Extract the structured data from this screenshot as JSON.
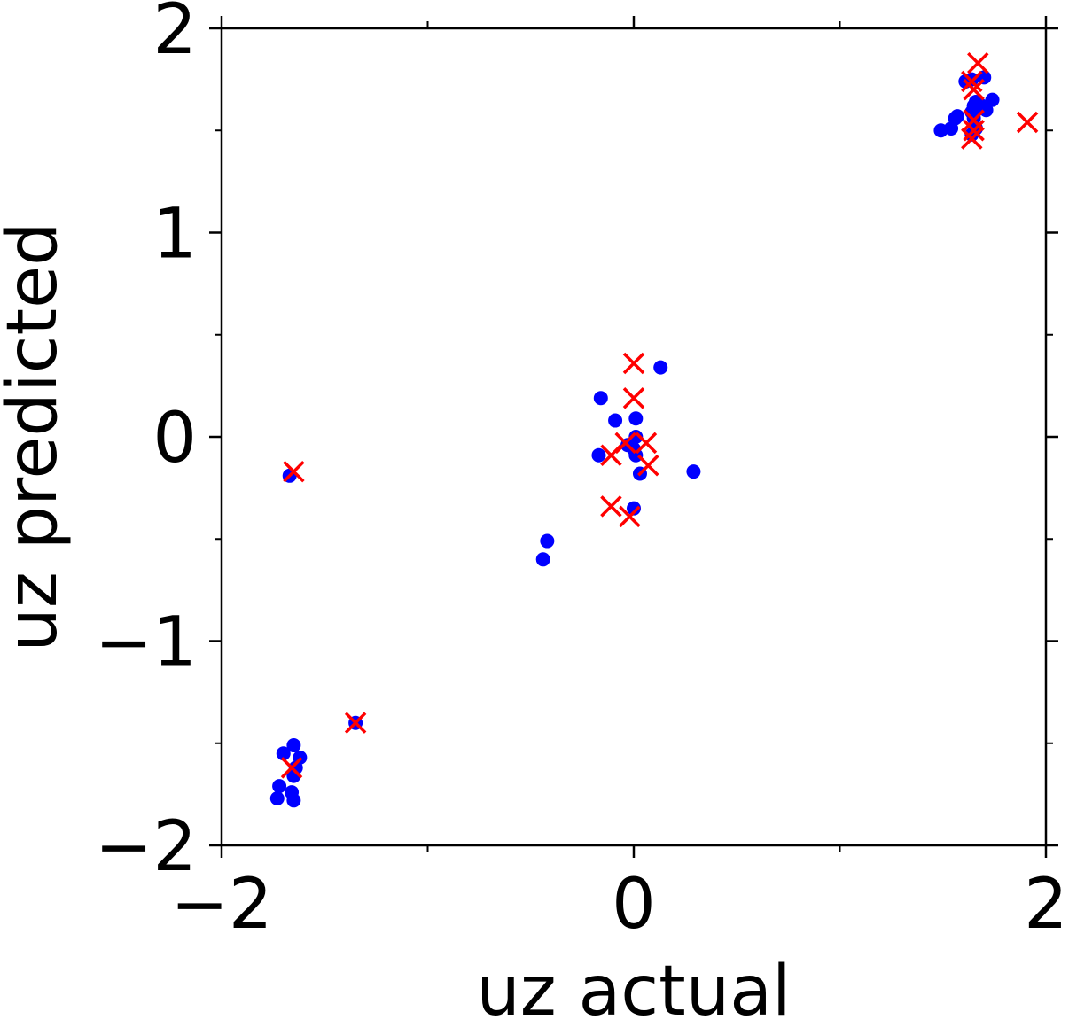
{
  "chart_data": {
    "type": "scatter",
    "title": "",
    "xlabel": "uz actual",
    "ylabel": "uz predicted",
    "xlim": [
      -2,
      2
    ],
    "ylim": [
      -2,
      2
    ],
    "major_ticks_x": [
      -2,
      0,
      2
    ],
    "major_ticks_y": [
      -2,
      -1,
      0,
      1,
      2
    ],
    "minor_ticks_x": [
      -1,
      1
    ],
    "minor_ticks_y": [
      -1.5,
      -0.5,
      0.5,
      1.5
    ],
    "tick_labels_x": [
      "−2",
      "0",
      "2"
    ],
    "tick_labels_y": [
      "−2",
      "−1",
      "0",
      "1",
      "2"
    ],
    "grid": false,
    "legend": "none",
    "series": [
      {
        "marker": "circle",
        "color": "#0000ff",
        "points": [
          [
            1.49,
            1.5
          ],
          [
            1.54,
            1.51
          ],
          [
            1.56,
            1.56
          ],
          [
            1.57,
            1.57
          ],
          [
            1.61,
            1.74
          ],
          [
            1.64,
            1.75
          ],
          [
            1.7,
            1.76
          ],
          [
            1.65,
            1.62
          ],
          [
            1.67,
            1.61
          ],
          [
            1.66,
            1.64
          ],
          [
            1.69,
            1.62
          ],
          [
            1.74,
            1.65
          ],
          [
            1.71,
            1.6
          ],
          [
            1.64,
            1.59
          ],
          [
            1.65,
            1.56
          ],
          [
            1.64,
            1.48
          ],
          [
            1.66,
            1.51
          ],
          [
            0.13,
            0.34
          ],
          [
            -0.16,
            0.19
          ],
          [
            -0.09,
            0.08
          ],
          [
            0.01,
            0.09
          ],
          [
            0.01,
            0.0
          ],
          [
            -0.03,
            -0.04
          ],
          [
            0.0,
            -0.06
          ],
          [
            0.01,
            -0.09
          ],
          [
            -0.17,
            -0.09
          ],
          [
            0.03,
            -0.18
          ],
          [
            0.29,
            -0.17
          ],
          [
            0.0,
            -0.35
          ],
          [
            -0.42,
            -0.51
          ],
          [
            -0.44,
            -0.6
          ],
          [
            -1.67,
            -0.19
          ],
          [
            -1.35,
            -1.4
          ],
          [
            -1.7,
            -1.55
          ],
          [
            -1.65,
            -1.51
          ],
          [
            -1.62,
            -1.57
          ],
          [
            -1.64,
            -1.62
          ],
          [
            -1.65,
            -1.66
          ],
          [
            -1.72,
            -1.71
          ],
          [
            -1.73,
            -1.77
          ],
          [
            -1.66,
            -1.74
          ],
          [
            -1.65,
            -1.78
          ]
        ]
      },
      {
        "marker": "x",
        "color": "#ff0000",
        "points": [
          [
            1.67,
            1.83
          ],
          [
            1.64,
            1.74
          ],
          [
            1.65,
            1.7
          ],
          [
            1.65,
            1.55
          ],
          [
            1.65,
            1.5
          ],
          [
            1.64,
            1.46
          ],
          [
            1.91,
            1.54
          ],
          [
            0.0,
            0.36
          ],
          [
            0.0,
            0.19
          ],
          [
            -0.04,
            -0.03
          ],
          [
            0.06,
            -0.03
          ],
          [
            -0.11,
            -0.09
          ],
          [
            0.07,
            -0.14
          ],
          [
            -0.11,
            -0.34
          ],
          [
            -0.02,
            -0.39
          ],
          [
            -1.65,
            -0.17
          ],
          [
            -1.35,
            -1.4
          ],
          [
            -1.66,
            -1.62
          ]
        ]
      }
    ]
  }
}
